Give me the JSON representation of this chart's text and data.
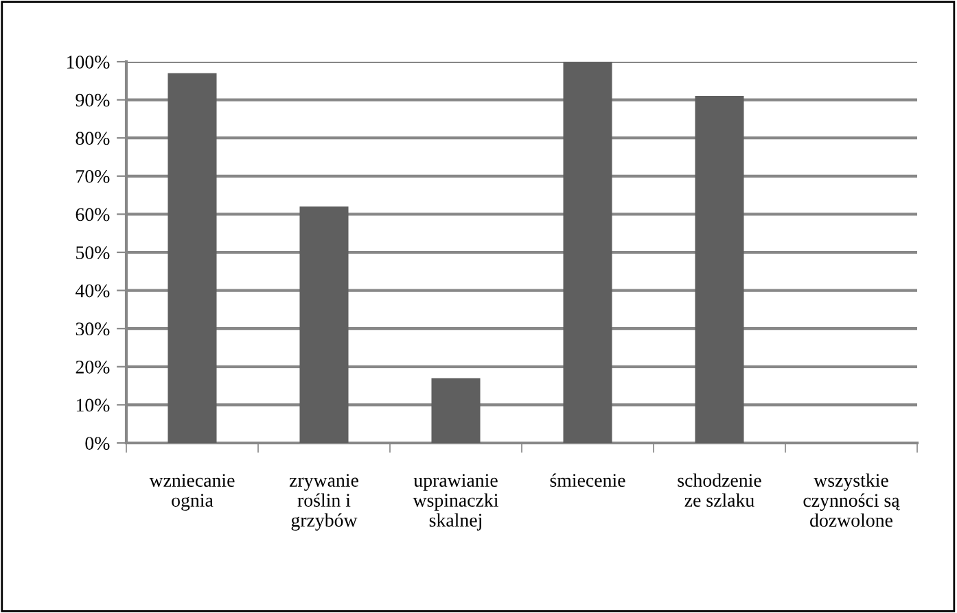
{
  "chart_data": {
    "type": "bar",
    "categories": [
      "wzniecanie\nognia",
      "zrywanie\nroślin i\ngrzybów",
      "uprawianie\nwspinaczki\nskalnej",
      "śmiecenie",
      "schodzenie\nze szlaku",
      "wszystkie\nczynności są\ndozwolone"
    ],
    "values": [
      97,
      62,
      17,
      100,
      91,
      0
    ],
    "color": "#5f5f5f",
    "ylim": [
      0,
      100
    ],
    "yticks": [
      {
        "value": 0,
        "label": "0%"
      },
      {
        "value": 10,
        "label": "10%"
      },
      {
        "value": 20,
        "label": "20%"
      },
      {
        "value": 30,
        "label": "30%"
      },
      {
        "value": 40,
        "label": "40%"
      },
      {
        "value": 50,
        "label": "50%"
      },
      {
        "value": 60,
        "label": "60%"
      },
      {
        "value": 70,
        "label": "70%"
      },
      {
        "value": 80,
        "label": "80%"
      },
      {
        "value": 90,
        "label": "90%"
      },
      {
        "value": 100,
        "label": "100%"
      }
    ],
    "grid": "y",
    "legend": false
  }
}
